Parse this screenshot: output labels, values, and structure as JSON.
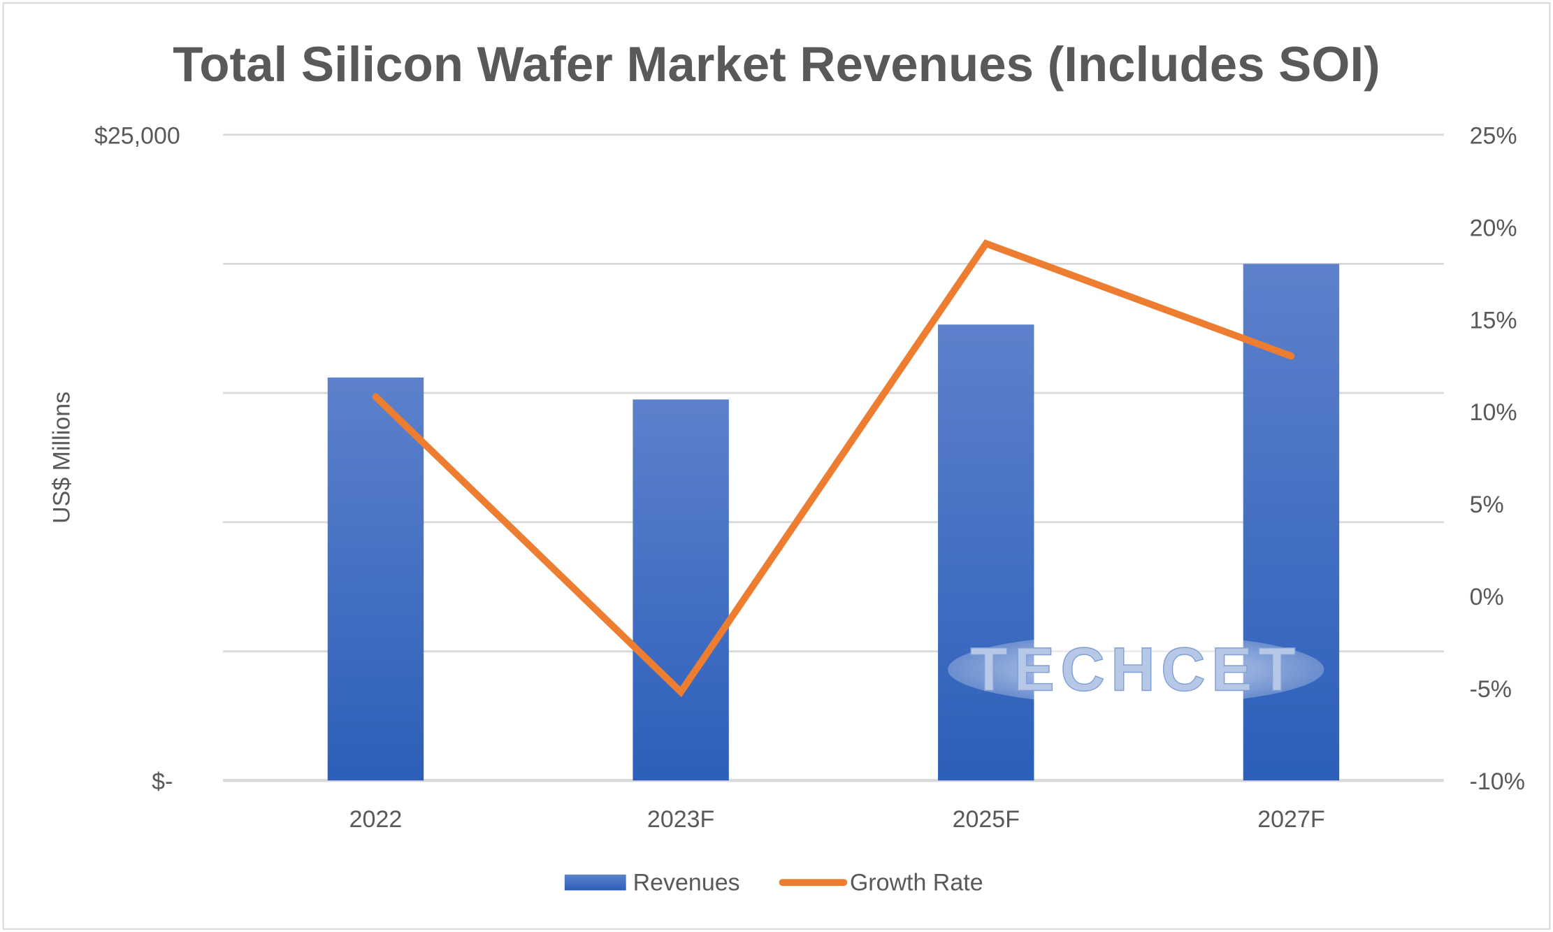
{
  "chart_data": {
    "type": "bar+line",
    "title": "Total Silicon Wafer Market Revenues (Includes SOI)",
    "ylabel": "US$ Millions",
    "categories": [
      "2022",
      "2023F",
      "2025F",
      "2027F"
    ],
    "series": [
      {
        "name": "Revenues",
        "type": "bar",
        "axis": "left",
        "color": "#4472c4",
        "values": [
          15600,
          14750,
          17650,
          20000
        ]
      },
      {
        "name": "Growth Rate",
        "type": "line",
        "axis": "right",
        "color": "#ed7d31",
        "values": [
          10.8,
          -5.2,
          19.1,
          13.0
        ]
      }
    ],
    "left_axis": {
      "ylim": [
        0,
        25000
      ],
      "step": 5000,
      "tick_labels": {
        "0": "$-",
        "25000": "$25,000"
      }
    },
    "right_axis": {
      "ylim": [
        -10,
        25
      ],
      "tick_labels": [
        "-10%",
        "-5%",
        "0%",
        "5%",
        "10%",
        "15%",
        "20%",
        "25%"
      ],
      "tick_values": [
        -10,
        -5,
        0,
        5,
        10,
        15,
        20,
        25
      ]
    },
    "grid": true,
    "legend": "bottom",
    "watermark": "TECHCET"
  }
}
